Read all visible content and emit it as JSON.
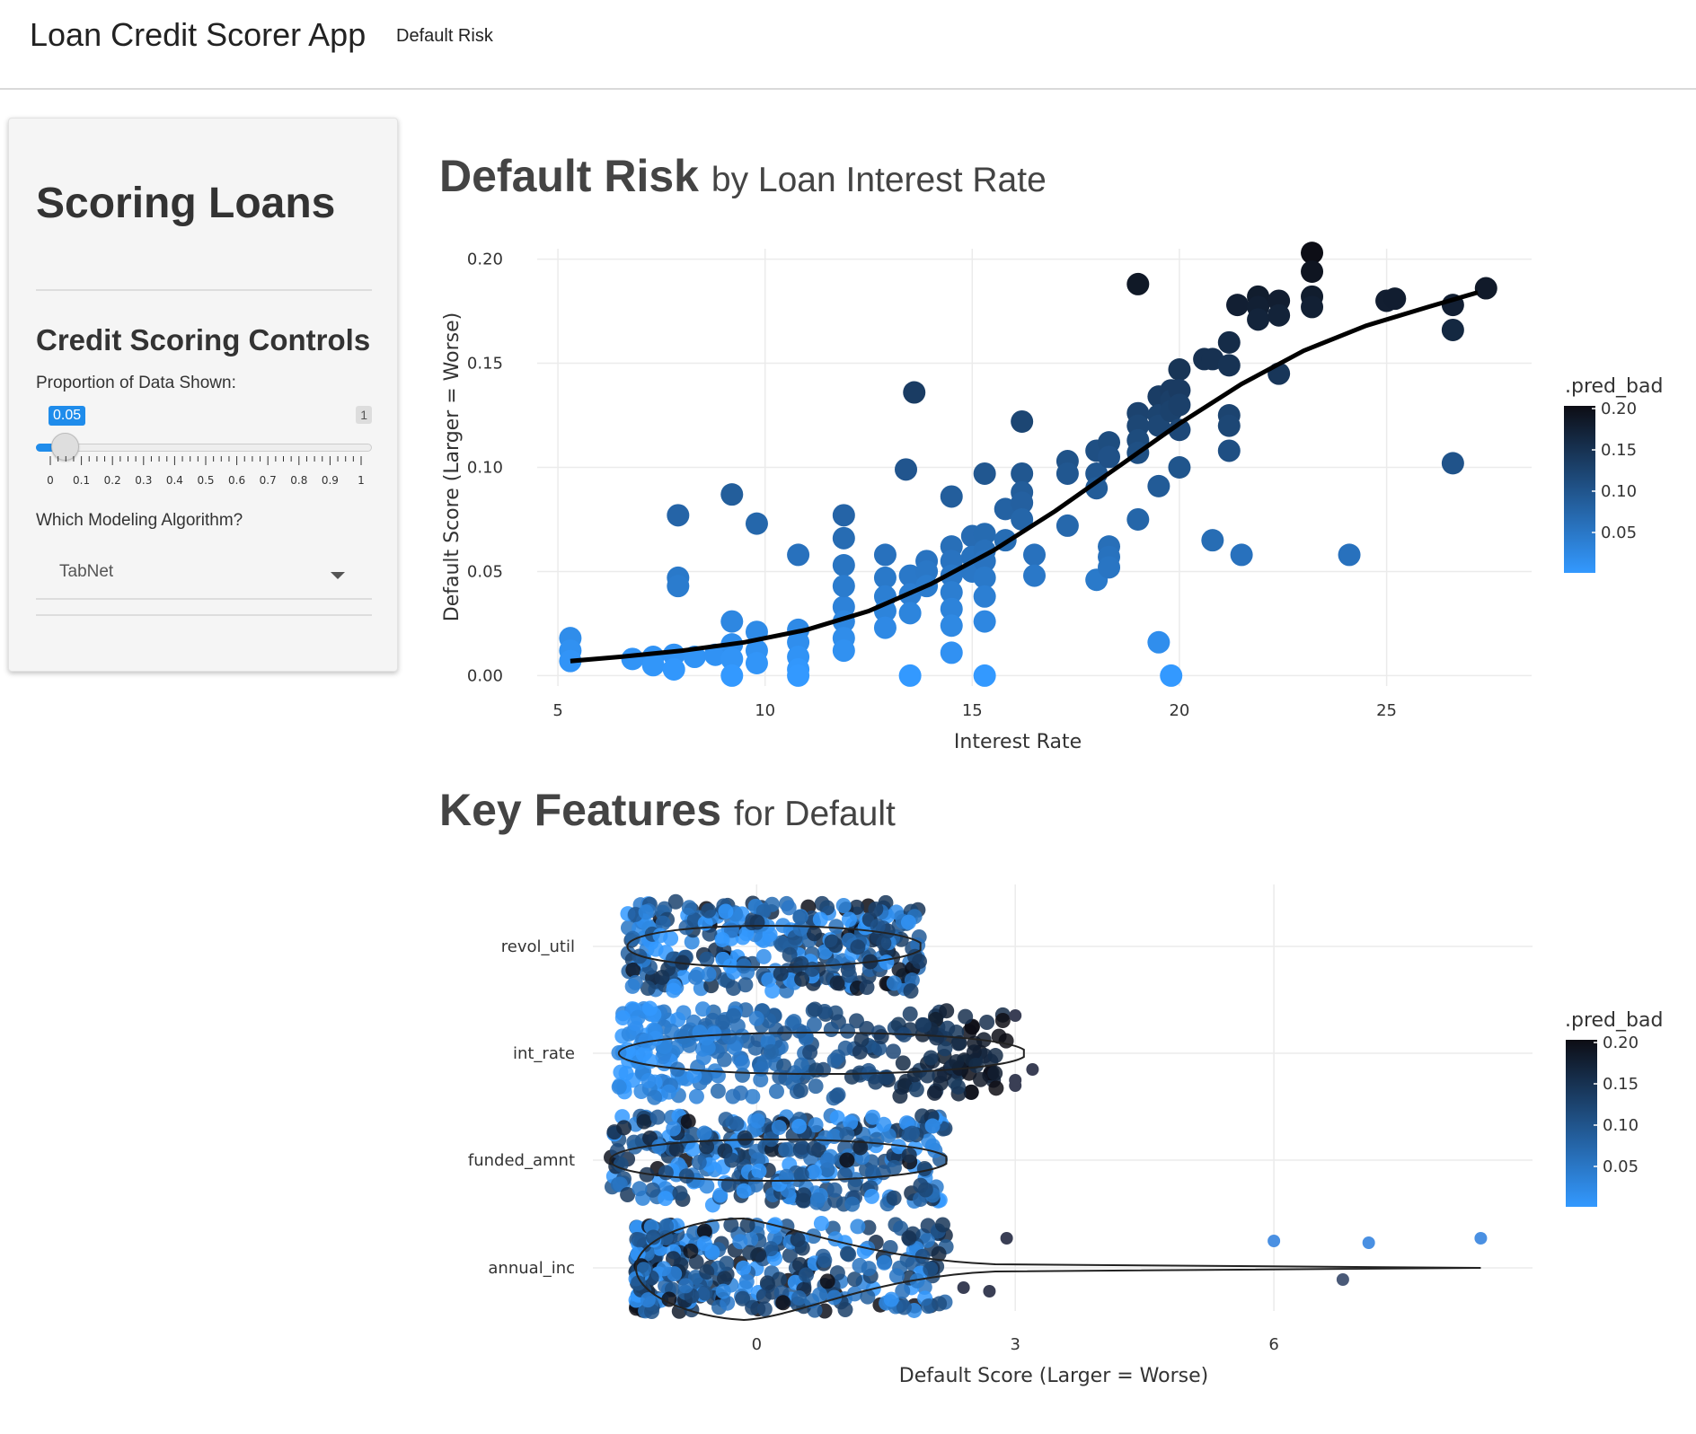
{
  "navbar": {
    "brand": "Loan Credit Scorer App",
    "tab": "Default Risk"
  },
  "sidebar": {
    "title": "Scoring Loans",
    "controls_title": "Credit Scoring Controls",
    "proportion_label": "Proportion of Data Shown:",
    "slider": {
      "value": "0.05",
      "max_label": "1",
      "ticks": [
        "0",
        "0.1",
        "0.2",
        "0.3",
        "0.4",
        "0.5",
        "0.6",
        "0.7",
        "0.8",
        "0.9",
        "1"
      ]
    },
    "algorithm_label": "Which Modeling Algorithm?",
    "algorithm_value": "TabNet"
  },
  "section1": {
    "title_bold": "Default Risk",
    "title_rest": "by Loan Interest Rate"
  },
  "section2": {
    "title_bold": "Key Features",
    "title_rest": "for Default"
  },
  "colors": {
    "accent": "#1f8ceb",
    "low": "#3399ff",
    "high": "#0d0d14"
  },
  "chart_data": [
    {
      "type": "scatter",
      "xlabel": "Interest Rate",
      "ylabel": "Default Score (Larger = Worse)",
      "xlim": [
        4.5,
        28.5
      ],
      "ylim": [
        -0.005,
        0.205
      ],
      "xticks": [
        "5",
        "10",
        "15",
        "20",
        "25"
      ],
      "yticks": [
        "0.00",
        "0.05",
        "0.10",
        "0.15",
        "0.20"
      ],
      "grid": true,
      "legend": {
        "title": ".pred_bad",
        "labels": [
          "0.20",
          "0.15",
          "0.10",
          "0.05"
        ],
        "position": "right"
      },
      "points": [
        [
          5.3,
          0.018
        ],
        [
          5.3,
          0.012
        ],
        [
          5.3,
          0.007
        ],
        [
          6.8,
          0.008
        ],
        [
          7.3,
          0.009
        ],
        [
          7.3,
          0.005
        ],
        [
          7.8,
          0.01
        ],
        [
          7.8,
          0.003
        ],
        [
          8.3,
          0.009
        ],
        [
          8.8,
          0.01
        ],
        [
          9.2,
          0.026
        ],
        [
          9.2,
          0.015
        ],
        [
          9.2,
          0.008
        ],
        [
          9.2,
          0.0
        ],
        [
          9.8,
          0.021
        ],
        [
          9.8,
          0.012
        ],
        [
          9.8,
          0.006
        ],
        [
          10.8,
          0.022
        ],
        [
          10.8,
          0.016
        ],
        [
          10.8,
          0.009
        ],
        [
          10.8,
          0.003
        ],
        [
          10.8,
          0.0
        ],
        [
          11.9,
          0.033
        ],
        [
          11.9,
          0.026
        ],
        [
          11.9,
          0.018
        ],
        [
          11.9,
          0.012
        ],
        [
          11.9,
          0.077
        ],
        [
          11.9,
          0.066
        ],
        [
          11.9,
          0.053
        ],
        [
          11.9,
          0.043
        ],
        [
          7.9,
          0.077
        ],
        [
          7.9,
          0.047
        ],
        [
          7.9,
          0.043
        ],
        [
          9.2,
          0.087
        ],
        [
          9.8,
          0.073
        ],
        [
          10.8,
          0.058
        ],
        [
          12.9,
          0.058
        ],
        [
          12.9,
          0.047
        ],
        [
          12.9,
          0.038
        ],
        [
          12.9,
          0.031
        ],
        [
          12.9,
          0.023
        ],
        [
          13.5,
          0.048
        ],
        [
          13.5,
          0.039
        ],
        [
          13.5,
          0.03
        ],
        [
          13.5,
          0.0
        ],
        [
          13.9,
          0.055
        ],
        [
          13.9,
          0.05
        ],
        [
          13.9,
          0.043
        ],
        [
          14.5,
          0.062
        ],
        [
          14.5,
          0.055
        ],
        [
          14.5,
          0.048
        ],
        [
          14.5,
          0.04
        ],
        [
          14.5,
          0.032
        ],
        [
          14.5,
          0.024
        ],
        [
          14.5,
          0.011
        ],
        [
          15.0,
          0.067
        ],
        [
          15.0,
          0.057
        ],
        [
          15.0,
          0.05
        ],
        [
          15.3,
          0.0
        ],
        [
          15.3,
          0.068
        ],
        [
          15.3,
          0.06
        ],
        [
          15.3,
          0.055
        ],
        [
          15.3,
          0.047
        ],
        [
          15.3,
          0.038
        ],
        [
          15.3,
          0.026
        ],
        [
          13.4,
          0.099
        ],
        [
          13.6,
          0.136
        ],
        [
          14.5,
          0.086
        ],
        [
          15.3,
          0.097
        ],
        [
          15.8,
          0.08
        ],
        [
          15.8,
          0.065
        ],
        [
          16.2,
          0.122
        ],
        [
          16.2,
          0.097
        ],
        [
          16.2,
          0.088
        ],
        [
          16.2,
          0.083
        ],
        [
          16.2,
          0.075
        ],
        [
          16.5,
          0.058
        ],
        [
          16.5,
          0.048
        ],
        [
          17.3,
          0.103
        ],
        [
          17.3,
          0.097
        ],
        [
          17.3,
          0.072
        ],
        [
          18.0,
          0.108
        ],
        [
          18.0,
          0.097
        ],
        [
          18.0,
          0.09
        ],
        [
          18.0,
          0.046
        ],
        [
          18.3,
          0.112
        ],
        [
          18.3,
          0.105
        ],
        [
          18.3,
          0.062
        ],
        [
          18.3,
          0.057
        ],
        [
          18.3,
          0.052
        ],
        [
          19.0,
          0.126
        ],
        [
          19.0,
          0.12
        ],
        [
          19.0,
          0.113
        ],
        [
          19.0,
          0.107
        ],
        [
          19.0,
          0.075
        ],
        [
          19.0,
          0.188
        ],
        [
          19.5,
          0.134
        ],
        [
          19.5,
          0.125
        ],
        [
          19.5,
          0.12
        ],
        [
          19.5,
          0.091
        ],
        [
          19.5,
          0.016
        ],
        [
          19.8,
          0.137
        ],
        [
          19.8,
          0.132
        ],
        [
          19.8,
          0.127
        ],
        [
          19.8,
          0.0
        ],
        [
          20.0,
          0.147
        ],
        [
          20.0,
          0.137
        ],
        [
          20.0,
          0.13
        ],
        [
          20.0,
          0.118
        ],
        [
          20.0,
          0.1
        ],
        [
          20.6,
          0.152
        ],
        [
          20.8,
          0.152
        ],
        [
          20.8,
          0.065
        ],
        [
          21.2,
          0.16
        ],
        [
          21.2,
          0.149
        ],
        [
          21.2,
          0.125
        ],
        [
          21.2,
          0.12
        ],
        [
          21.2,
          0.108
        ],
        [
          21.5,
          0.058
        ],
        [
          21.4,
          0.178
        ],
        [
          21.9,
          0.182
        ],
        [
          21.9,
          0.177
        ],
        [
          21.9,
          0.171
        ],
        [
          22.4,
          0.18
        ],
        [
          22.4,
          0.173
        ],
        [
          22.4,
          0.145
        ],
        [
          23.2,
          0.203
        ],
        [
          23.2,
          0.194
        ],
        [
          23.2,
          0.182
        ],
        [
          23.2,
          0.177
        ],
        [
          24.1,
          0.058
        ],
        [
          25.0,
          0.18
        ],
        [
          25.2,
          0.181
        ],
        [
          26.6,
          0.178
        ],
        [
          26.6,
          0.166
        ],
        [
          26.6,
          0.102
        ],
        [
          27.4,
          0.186
        ]
      ],
      "trend": [
        [
          5.3,
          0.007
        ],
        [
          6.5,
          0.009
        ],
        [
          8.0,
          0.012
        ],
        [
          9.5,
          0.016
        ],
        [
          11.0,
          0.022
        ],
        [
          12.5,
          0.031
        ],
        [
          14.0,
          0.044
        ],
        [
          15.5,
          0.06
        ],
        [
          17.0,
          0.079
        ],
        [
          18.5,
          0.1
        ],
        [
          20.0,
          0.121
        ],
        [
          21.5,
          0.14
        ],
        [
          23.0,
          0.156
        ],
        [
          24.5,
          0.168
        ],
        [
          26.0,
          0.177
        ],
        [
          27.2,
          0.184
        ]
      ]
    },
    {
      "type": "scatter",
      "xlabel": "Default Score (Larger = Worse)",
      "xlim": [
        -1.9,
        9.0
      ],
      "xticks": [
        "0",
        "3",
        "6"
      ],
      "categories": [
        "revol_util",
        "int_rate",
        "funded_amnt",
        "annual_inc"
      ],
      "grid": true,
      "legend": {
        "title": ".pred_bad",
        "labels": [
          "0.20",
          "0.15",
          "0.10",
          "0.05"
        ],
        "position": "right"
      },
      "ranges": [
        [
          -1.5,
          1.9
        ],
        [
          -1.6,
          3.1
        ],
        [
          -1.7,
          2.2
        ],
        [
          -1.4,
          8.4
        ]
      ],
      "outliers": [
        [
          1,
          3.0,
          -0.42
        ],
        [
          1,
          3.2,
          0.18
        ],
        [
          1,
          3.0,
          0.36
        ],
        [
          1,
          3.0,
          0.3
        ],
        [
          3,
          6.0,
          -0.3
        ],
        [
          3,
          7.1,
          -0.28
        ],
        [
          3,
          8.4,
          -0.33
        ],
        [
          3,
          6.8,
          0.13
        ],
        [
          3,
          2.4,
          0.22
        ],
        [
          3,
          2.7,
          0.26
        ],
        [
          3,
          2.9,
          -0.33
        ]
      ],
      "violins": [
        [
          -1.5,
          1.9
        ],
        [
          -1.6,
          3.1
        ],
        [
          -1.7,
          2.2
        ],
        [
          -1.4,
          8.4
        ]
      ]
    }
  ]
}
